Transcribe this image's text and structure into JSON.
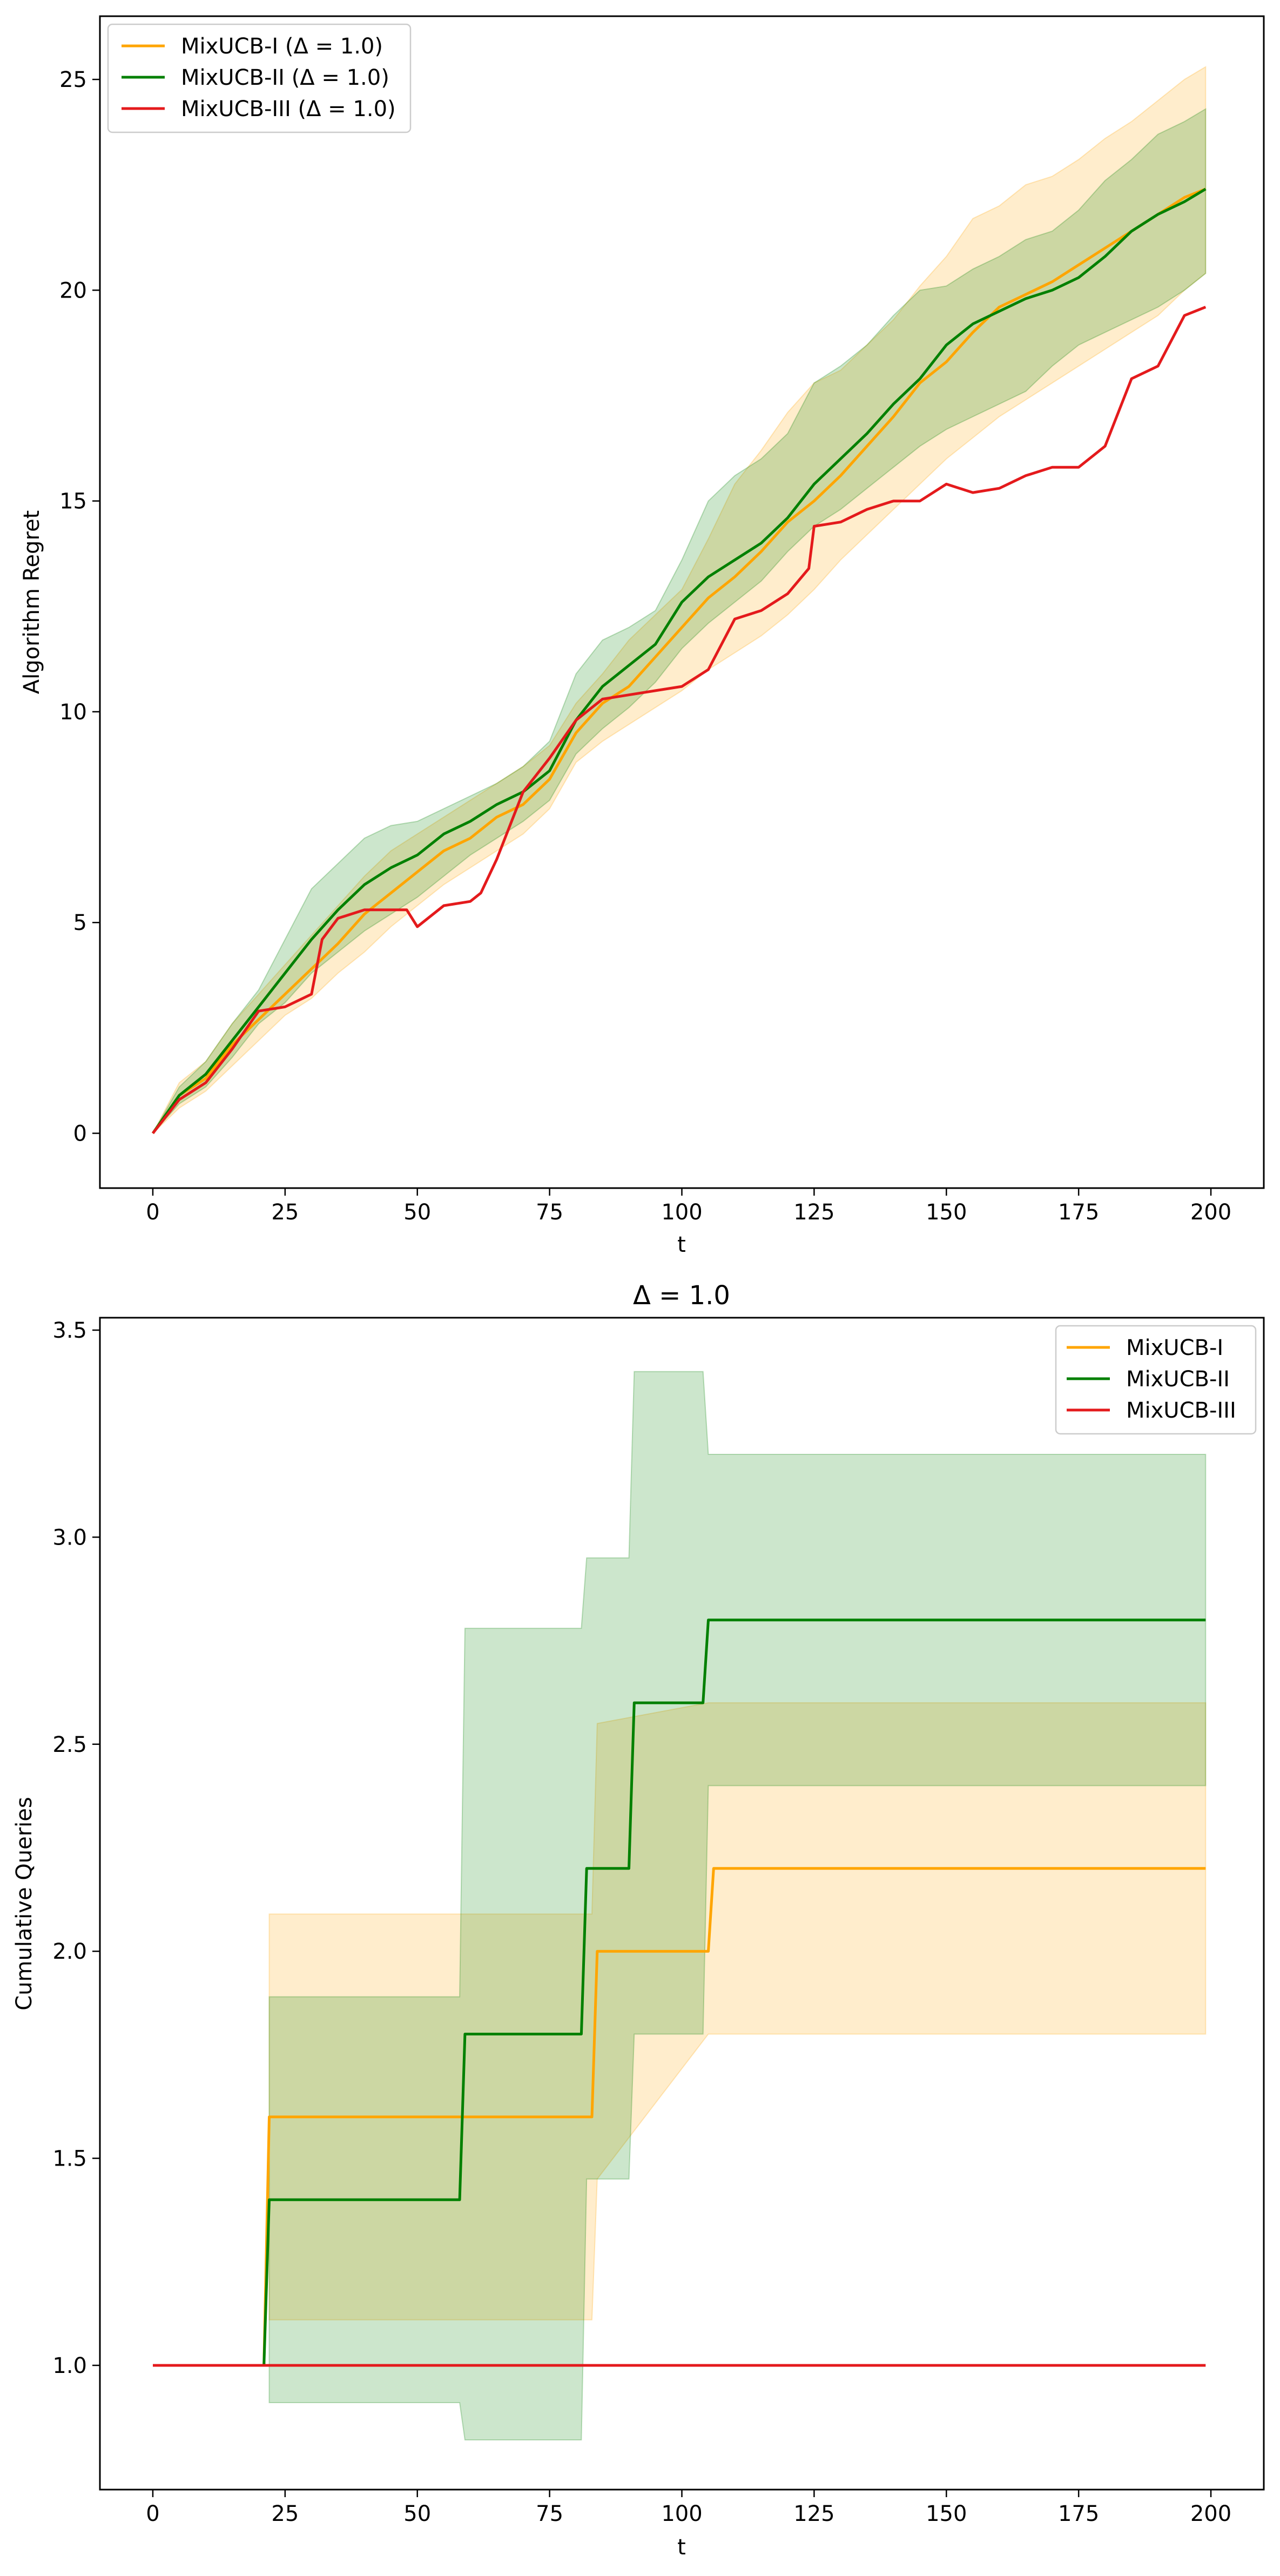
{
  "chart_data": [
    {
      "type": "line",
      "title": "",
      "xlabel": "t",
      "ylabel": "Algorithm Regret",
      "xlim": [
        -10,
        210
      ],
      "ylim": [
        -1.3,
        26.5
      ],
      "xticks": [
        0,
        25,
        50,
        75,
        100,
        125,
        150,
        175,
        200
      ],
      "yticks": [
        0,
        5,
        10,
        15,
        20,
        25
      ],
      "legend_position": "upper left",
      "series": [
        {
          "name": "MixUCB-I (Δ = 1.0)",
          "color": "#ffa500",
          "x": [
            0,
            5,
            10,
            15,
            20,
            25,
            30,
            35,
            40,
            45,
            50,
            55,
            60,
            65,
            70,
            75,
            80,
            85,
            90,
            95,
            100,
            105,
            110,
            115,
            120,
            125,
            130,
            135,
            140,
            145,
            150,
            155,
            160,
            165,
            170,
            175,
            180,
            185,
            190,
            195,
            199
          ],
          "y": [
            0,
            0.9,
            1.3,
            2.1,
            2.7,
            3.3,
            3.9,
            4.5,
            5.2,
            5.7,
            6.2,
            6.7,
            7.0,
            7.5,
            7.8,
            8.4,
            9.5,
            10.2,
            10.6,
            11.3,
            12.0,
            12.7,
            13.2,
            13.8,
            14.5,
            15.0,
            15.6,
            16.3,
            17.0,
            17.8,
            18.3,
            19.0,
            19.6,
            19.9,
            20.2,
            20.6,
            21.0,
            21.4,
            21.8,
            22.2,
            22.4
          ],
          "lower": [
            0,
            0.6,
            1.0,
            1.6,
            2.2,
            2.8,
            3.2,
            3.8,
            4.3,
            4.9,
            5.4,
            5.9,
            6.3,
            6.7,
            7.1,
            7.7,
            8.8,
            9.3,
            9.7,
            10.1,
            10.5,
            11.0,
            11.4,
            11.8,
            12.3,
            12.9,
            13.6,
            14.2,
            14.8,
            15.4,
            16.0,
            16.5,
            17.0,
            17.4,
            17.8,
            18.2,
            18.6,
            19.0,
            19.4,
            20.0,
            20.4
          ],
          "upper": [
            0,
            1.2,
            1.7,
            2.6,
            3.3,
            4.0,
            4.7,
            5.4,
            6.1,
            6.7,
            7.1,
            7.5,
            7.9,
            8.3,
            8.7,
            9.2,
            10.2,
            10.9,
            11.7,
            12.3,
            12.9,
            14.1,
            15.4,
            16.2,
            17.1,
            17.8,
            18.1,
            18.7,
            19.3,
            20.1,
            20.8,
            21.7,
            22.0,
            22.5,
            22.7,
            23.1,
            23.6,
            24.0,
            24.5,
            25.0,
            25.3
          ]
        },
        {
          "name": "MixUCB-II (Δ = 1.0)",
          "color": "#008000",
          "x": [
            0,
            5,
            10,
            15,
            20,
            25,
            30,
            35,
            40,
            45,
            50,
            55,
            60,
            65,
            70,
            75,
            80,
            85,
            90,
            95,
            100,
            105,
            110,
            115,
            120,
            125,
            130,
            135,
            140,
            145,
            150,
            155,
            160,
            165,
            170,
            175,
            180,
            185,
            190,
            195,
            199
          ],
          "y": [
            0,
            0.9,
            1.4,
            2.2,
            3.0,
            3.8,
            4.6,
            5.3,
            5.9,
            6.3,
            6.6,
            7.1,
            7.4,
            7.8,
            8.1,
            8.6,
            9.8,
            10.6,
            11.1,
            11.6,
            12.6,
            13.2,
            13.6,
            14.0,
            14.6,
            15.4,
            16.0,
            16.6,
            17.3,
            17.9,
            18.7,
            19.2,
            19.5,
            19.8,
            20.0,
            20.3,
            20.8,
            21.4,
            21.8,
            22.1,
            22.4
          ],
          "lower": [
            0,
            0.7,
            1.1,
            1.8,
            2.6,
            3.1,
            3.8,
            4.3,
            4.8,
            5.2,
            5.6,
            6.1,
            6.6,
            7.0,
            7.4,
            7.9,
            9.0,
            9.6,
            10.1,
            10.7,
            11.5,
            12.1,
            12.6,
            13.1,
            13.8,
            14.4,
            14.8,
            15.3,
            15.8,
            16.3,
            16.7,
            17.0,
            17.3,
            17.6,
            18.2,
            18.7,
            19.0,
            19.3,
            19.6,
            20.0,
            20.4
          ],
          "upper": [
            0,
            1.1,
            1.7,
            2.6,
            3.4,
            4.6,
            5.8,
            6.4,
            7.0,
            7.3,
            7.4,
            7.7,
            8.0,
            8.3,
            8.7,
            9.3,
            10.9,
            11.7,
            12.0,
            12.4,
            13.6,
            15.0,
            15.6,
            16.0,
            16.6,
            17.8,
            18.2,
            18.7,
            19.4,
            20.0,
            20.1,
            20.5,
            20.8,
            21.2,
            21.4,
            21.9,
            22.6,
            23.1,
            23.7,
            24.0,
            24.3
          ]
        },
        {
          "name": "MixUCB-III (Δ = 1.0)",
          "color": "#e41a1c",
          "x": [
            0,
            5,
            10,
            15,
            20,
            25,
            30,
            32,
            35,
            40,
            45,
            48,
            50,
            55,
            60,
            62,
            65,
            70,
            75,
            80,
            85,
            90,
            95,
            100,
            105,
            110,
            115,
            120,
            124,
            125,
            130,
            135,
            140,
            145,
            150,
            155,
            160,
            165,
            170,
            175,
            180,
            185,
            190,
            195,
            199
          ],
          "y": [
            0,
            0.8,
            1.2,
            2.0,
            2.9,
            3.0,
            3.3,
            4.6,
            5.1,
            5.3,
            5.3,
            5.3,
            4.9,
            5.4,
            5.5,
            5.7,
            6.5,
            8.1,
            8.9,
            9.8,
            10.3,
            10.4,
            10.5,
            10.6,
            11.0,
            12.2,
            12.4,
            12.8,
            13.4,
            14.4,
            14.5,
            14.8,
            15.0,
            15.0,
            15.4,
            15.2,
            15.3,
            15.6,
            15.8,
            15.8,
            16.3,
            17.9,
            18.2,
            19.4,
            19.6
          ]
        }
      ]
    },
    {
      "type": "line",
      "title": "Δ = 1.0",
      "xlabel": "t",
      "ylabel": "Cumulative Queries",
      "xlim": [
        -10,
        210
      ],
      "ylim": [
        0.7,
        3.53
      ],
      "xticks": [
        0,
        25,
        50,
        75,
        100,
        125,
        150,
        175,
        200
      ],
      "yticks": [
        1.0,
        1.5,
        2.0,
        2.5,
        3.0,
        3.5
      ],
      "legend_position": "upper right",
      "series": [
        {
          "name": "MixUCB-I",
          "color": "#ffa500",
          "steps": [
            [
              0,
              1.0
            ],
            [
              21,
              1.0
            ],
            [
              22,
              1.6
            ],
            [
              83,
              1.6
            ],
            [
              84,
              2.0
            ],
            [
              105,
              2.0
            ],
            [
              106,
              2.2
            ],
            [
              199,
              2.2
            ]
          ],
          "band": [
            [
              22,
              1.11,
              2.09
            ],
            [
              83,
              1.11,
              2.09
            ],
            [
              84,
              1.45,
              2.55
            ],
            [
              105,
              1.8,
              2.6
            ],
            [
              106,
              1.8,
              2.6
            ],
            [
              199,
              1.8,
              2.6
            ]
          ]
        },
        {
          "name": "MixUCB-II",
          "color": "#008000",
          "steps": [
            [
              0,
              1.0
            ],
            [
              21,
              1.0
            ],
            [
              22,
              1.4
            ],
            [
              58,
              1.4
            ],
            [
              59,
              1.8
            ],
            [
              81,
              1.8
            ],
            [
              82,
              2.2
            ],
            [
              90,
              2.2
            ],
            [
              91,
              2.6
            ],
            [
              104,
              2.6
            ],
            [
              105,
              2.8
            ],
            [
              199,
              2.8
            ]
          ],
          "band": [
            [
              22,
              0.91,
              1.89
            ],
            [
              58,
              0.91,
              1.89
            ],
            [
              59,
              0.82,
              2.78
            ],
            [
              81,
              0.82,
              2.78
            ],
            [
              82,
              1.45,
              2.95
            ],
            [
              90,
              1.45,
              2.95
            ],
            [
              91,
              1.8,
              3.4
            ],
            [
              104,
              1.8,
              3.4
            ],
            [
              105,
              2.4,
              3.2
            ],
            [
              199,
              2.4,
              3.2
            ]
          ]
        },
        {
          "name": "MixUCB-III",
          "color": "#e41a1c",
          "steps": [
            [
              0,
              1.0
            ],
            [
              199,
              1.0
            ]
          ]
        }
      ]
    }
  ]
}
